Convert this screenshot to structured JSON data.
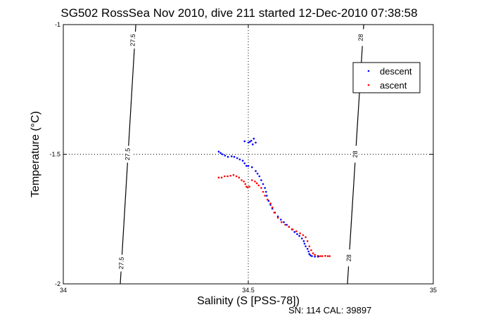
{
  "chart_data": {
    "type": "scatter",
    "title": "SG502 RossSea Nov 2010, dive 211 started 12-Dec-2010 07:38:58",
    "xlabel": "Salinity (S [PSS-78])",
    "ylabel": "Temperature (°C)",
    "xlim": [
      34,
      35
    ],
    "ylim": [
      -2,
      -1
    ],
    "xticks": [
      "34",
      "34.5",
      "35"
    ],
    "yticks": [
      "-1",
      "-1.5",
      "-2"
    ],
    "grid": "dotted at x=34.5 and y=-1.5",
    "legend_position": "top-right",
    "footer": "SN: 114  CAL: 39897",
    "contours": [
      {
        "label": "27.5",
        "points": [
          [
            34.196,
            -1.0
          ],
          [
            34.154,
            -2.0
          ]
        ]
      },
      {
        "label": "28",
        "points": [
          [
            34.812,
            -1.0
          ],
          [
            34.768,
            -2.0
          ]
        ]
      }
    ],
    "contour_labels": [
      {
        "text": "27.5",
        "s": 34.189,
        "t": -1.06
      },
      {
        "text": "27.5",
        "s": 34.175,
        "t": -1.5
      },
      {
        "text": "27.5",
        "s": 34.158,
        "t": -1.92
      },
      {
        "text": "28",
        "s": 34.805,
        "t": -1.05
      },
      {
        "text": "28",
        "s": 34.79,
        "t": -1.5
      },
      {
        "text": "28",
        "s": 34.773,
        "t": -1.9
      }
    ],
    "series": [
      {
        "name": "descent",
        "color": "#0000ff",
        "points": [
          [
            34.49,
            -1.45
          ],
          [
            34.5,
            -1.455
          ],
          [
            34.508,
            -1.448
          ],
          [
            34.515,
            -1.44
          ],
          [
            34.52,
            -1.455
          ],
          [
            34.512,
            -1.462
          ],
          [
            34.504,
            -1.452
          ],
          [
            34.42,
            -1.49
          ],
          [
            34.425,
            -1.495
          ],
          [
            34.43,
            -1.5
          ],
          [
            34.437,
            -1.505
          ],
          [
            34.445,
            -1.51
          ],
          [
            34.455,
            -1.508
          ],
          [
            34.462,
            -1.51
          ],
          [
            34.47,
            -1.515
          ],
          [
            34.477,
            -1.52
          ],
          [
            34.485,
            -1.525
          ],
          [
            34.49,
            -1.535
          ],
          [
            34.495,
            -1.545
          ],
          [
            34.5,
            -1.545
          ],
          [
            34.51,
            -1.55
          ],
          [
            34.52,
            -1.565
          ],
          [
            34.525,
            -1.575
          ],
          [
            34.53,
            -1.585
          ],
          [
            34.535,
            -1.6
          ],
          [
            34.54,
            -1.615
          ],
          [
            34.545,
            -1.63
          ],
          [
            34.548,
            -1.645
          ],
          [
            34.55,
            -1.66
          ],
          [
            34.555,
            -1.68
          ],
          [
            34.56,
            -1.695
          ],
          [
            34.565,
            -1.71
          ],
          [
            34.572,
            -1.725
          ],
          [
            34.58,
            -1.74
          ],
          [
            34.588,
            -1.752
          ],
          [
            34.596,
            -1.762
          ],
          [
            34.604,
            -1.772
          ],
          [
            34.61,
            -1.78
          ],
          [
            34.618,
            -1.79
          ],
          [
            34.625,
            -1.8
          ],
          [
            34.632,
            -1.808
          ],
          [
            34.638,
            -1.815
          ],
          [
            34.645,
            -1.825
          ],
          [
            34.65,
            -1.835
          ],
          [
            34.652,
            -1.845
          ],
          [
            34.655,
            -1.855
          ],
          [
            34.66,
            -1.865
          ],
          [
            34.663,
            -1.875
          ],
          [
            34.665,
            -1.885
          ],
          [
            34.668,
            -1.89
          ],
          [
            34.672,
            -1.893
          ],
          [
            34.68,
            -1.895
          ],
          [
            34.688,
            -1.895
          ],
          [
            34.69,
            -1.894
          ]
        ]
      },
      {
        "name": "ascent",
        "color": "#ff0000",
        "points": [
          [
            34.42,
            -1.59
          ],
          [
            34.428,
            -1.59
          ],
          [
            34.436,
            -1.585
          ],
          [
            34.444,
            -1.585
          ],
          [
            34.452,
            -1.583
          ],
          [
            34.46,
            -1.58
          ],
          [
            34.468,
            -1.585
          ],
          [
            34.475,
            -1.59
          ],
          [
            34.482,
            -1.6
          ],
          [
            34.488,
            -1.605
          ],
          [
            34.492,
            -1.615
          ],
          [
            34.495,
            -1.625
          ],
          [
            34.498,
            -1.628
          ],
          [
            34.503,
            -1.625
          ],
          [
            34.51,
            -1.6
          ],
          [
            34.518,
            -1.605
          ],
          [
            34.523,
            -1.612
          ],
          [
            34.528,
            -1.62
          ],
          [
            34.535,
            -1.63
          ],
          [
            34.54,
            -1.645
          ],
          [
            34.545,
            -1.66
          ],
          [
            34.552,
            -1.675
          ],
          [
            34.56,
            -1.69
          ],
          [
            34.565,
            -1.705
          ],
          [
            34.57,
            -1.725
          ],
          [
            34.58,
            -1.745
          ],
          [
            34.59,
            -1.762
          ],
          [
            34.6,
            -1.772
          ],
          [
            34.61,
            -1.78
          ],
          [
            34.62,
            -1.79
          ],
          [
            34.63,
            -1.797
          ],
          [
            34.64,
            -1.805
          ],
          [
            34.648,
            -1.812
          ],
          [
            34.655,
            -1.82
          ],
          [
            34.66,
            -1.835
          ],
          [
            34.665,
            -1.855
          ],
          [
            34.67,
            -1.87
          ],
          [
            34.675,
            -1.882
          ],
          [
            34.68,
            -1.888
          ],
          [
            34.688,
            -1.892
          ],
          [
            34.695,
            -1.893
          ],
          [
            34.7,
            -1.893
          ],
          [
            34.708,
            -1.892
          ],
          [
            34.715,
            -1.893
          ],
          [
            34.72,
            -1.893
          ]
        ]
      }
    ]
  }
}
